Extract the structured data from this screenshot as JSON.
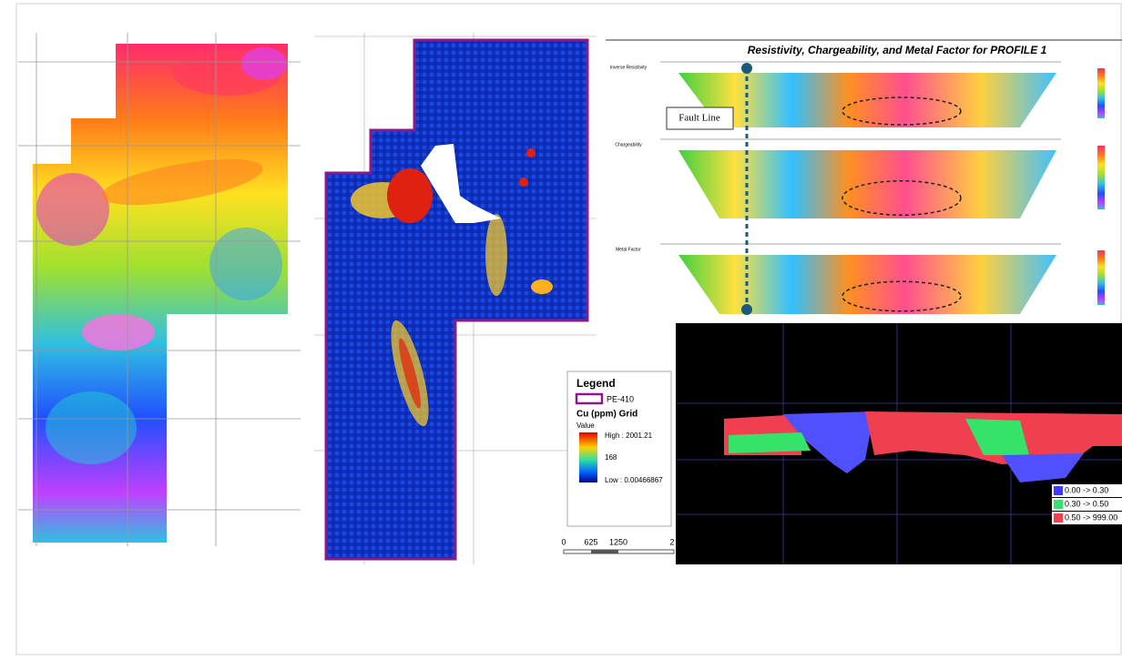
{
  "cu_grid_map": {
    "legend": {
      "title": "Legend",
      "boundary": "PE-410",
      "layer": "Cu (ppm) Grid",
      "field": "Value",
      "high": "High : 2001.21",
      "mid": "168",
      "low": "Low : 0.00466867"
    },
    "scale_bar": [
      "0",
      "625",
      "1250",
      "2"
    ]
  },
  "profile": {
    "title": "Resistivity, Chargeability, and Metal Factor for PROFILE 1",
    "annotation": "Fault Line",
    "sections": [
      "Inverse Resistivity",
      "Chargeability",
      "Metal Factor"
    ]
  },
  "block_model": {
    "legend": [
      {
        "label": "0.00 -> 0.30",
        "color": "#3c3cff"
      },
      {
        "label": "0.30 -> 0.50",
        "color": "#35e26a"
      },
      {
        "label": "0.50 -> 999.00",
        "color": "#f04050"
      }
    ]
  }
}
